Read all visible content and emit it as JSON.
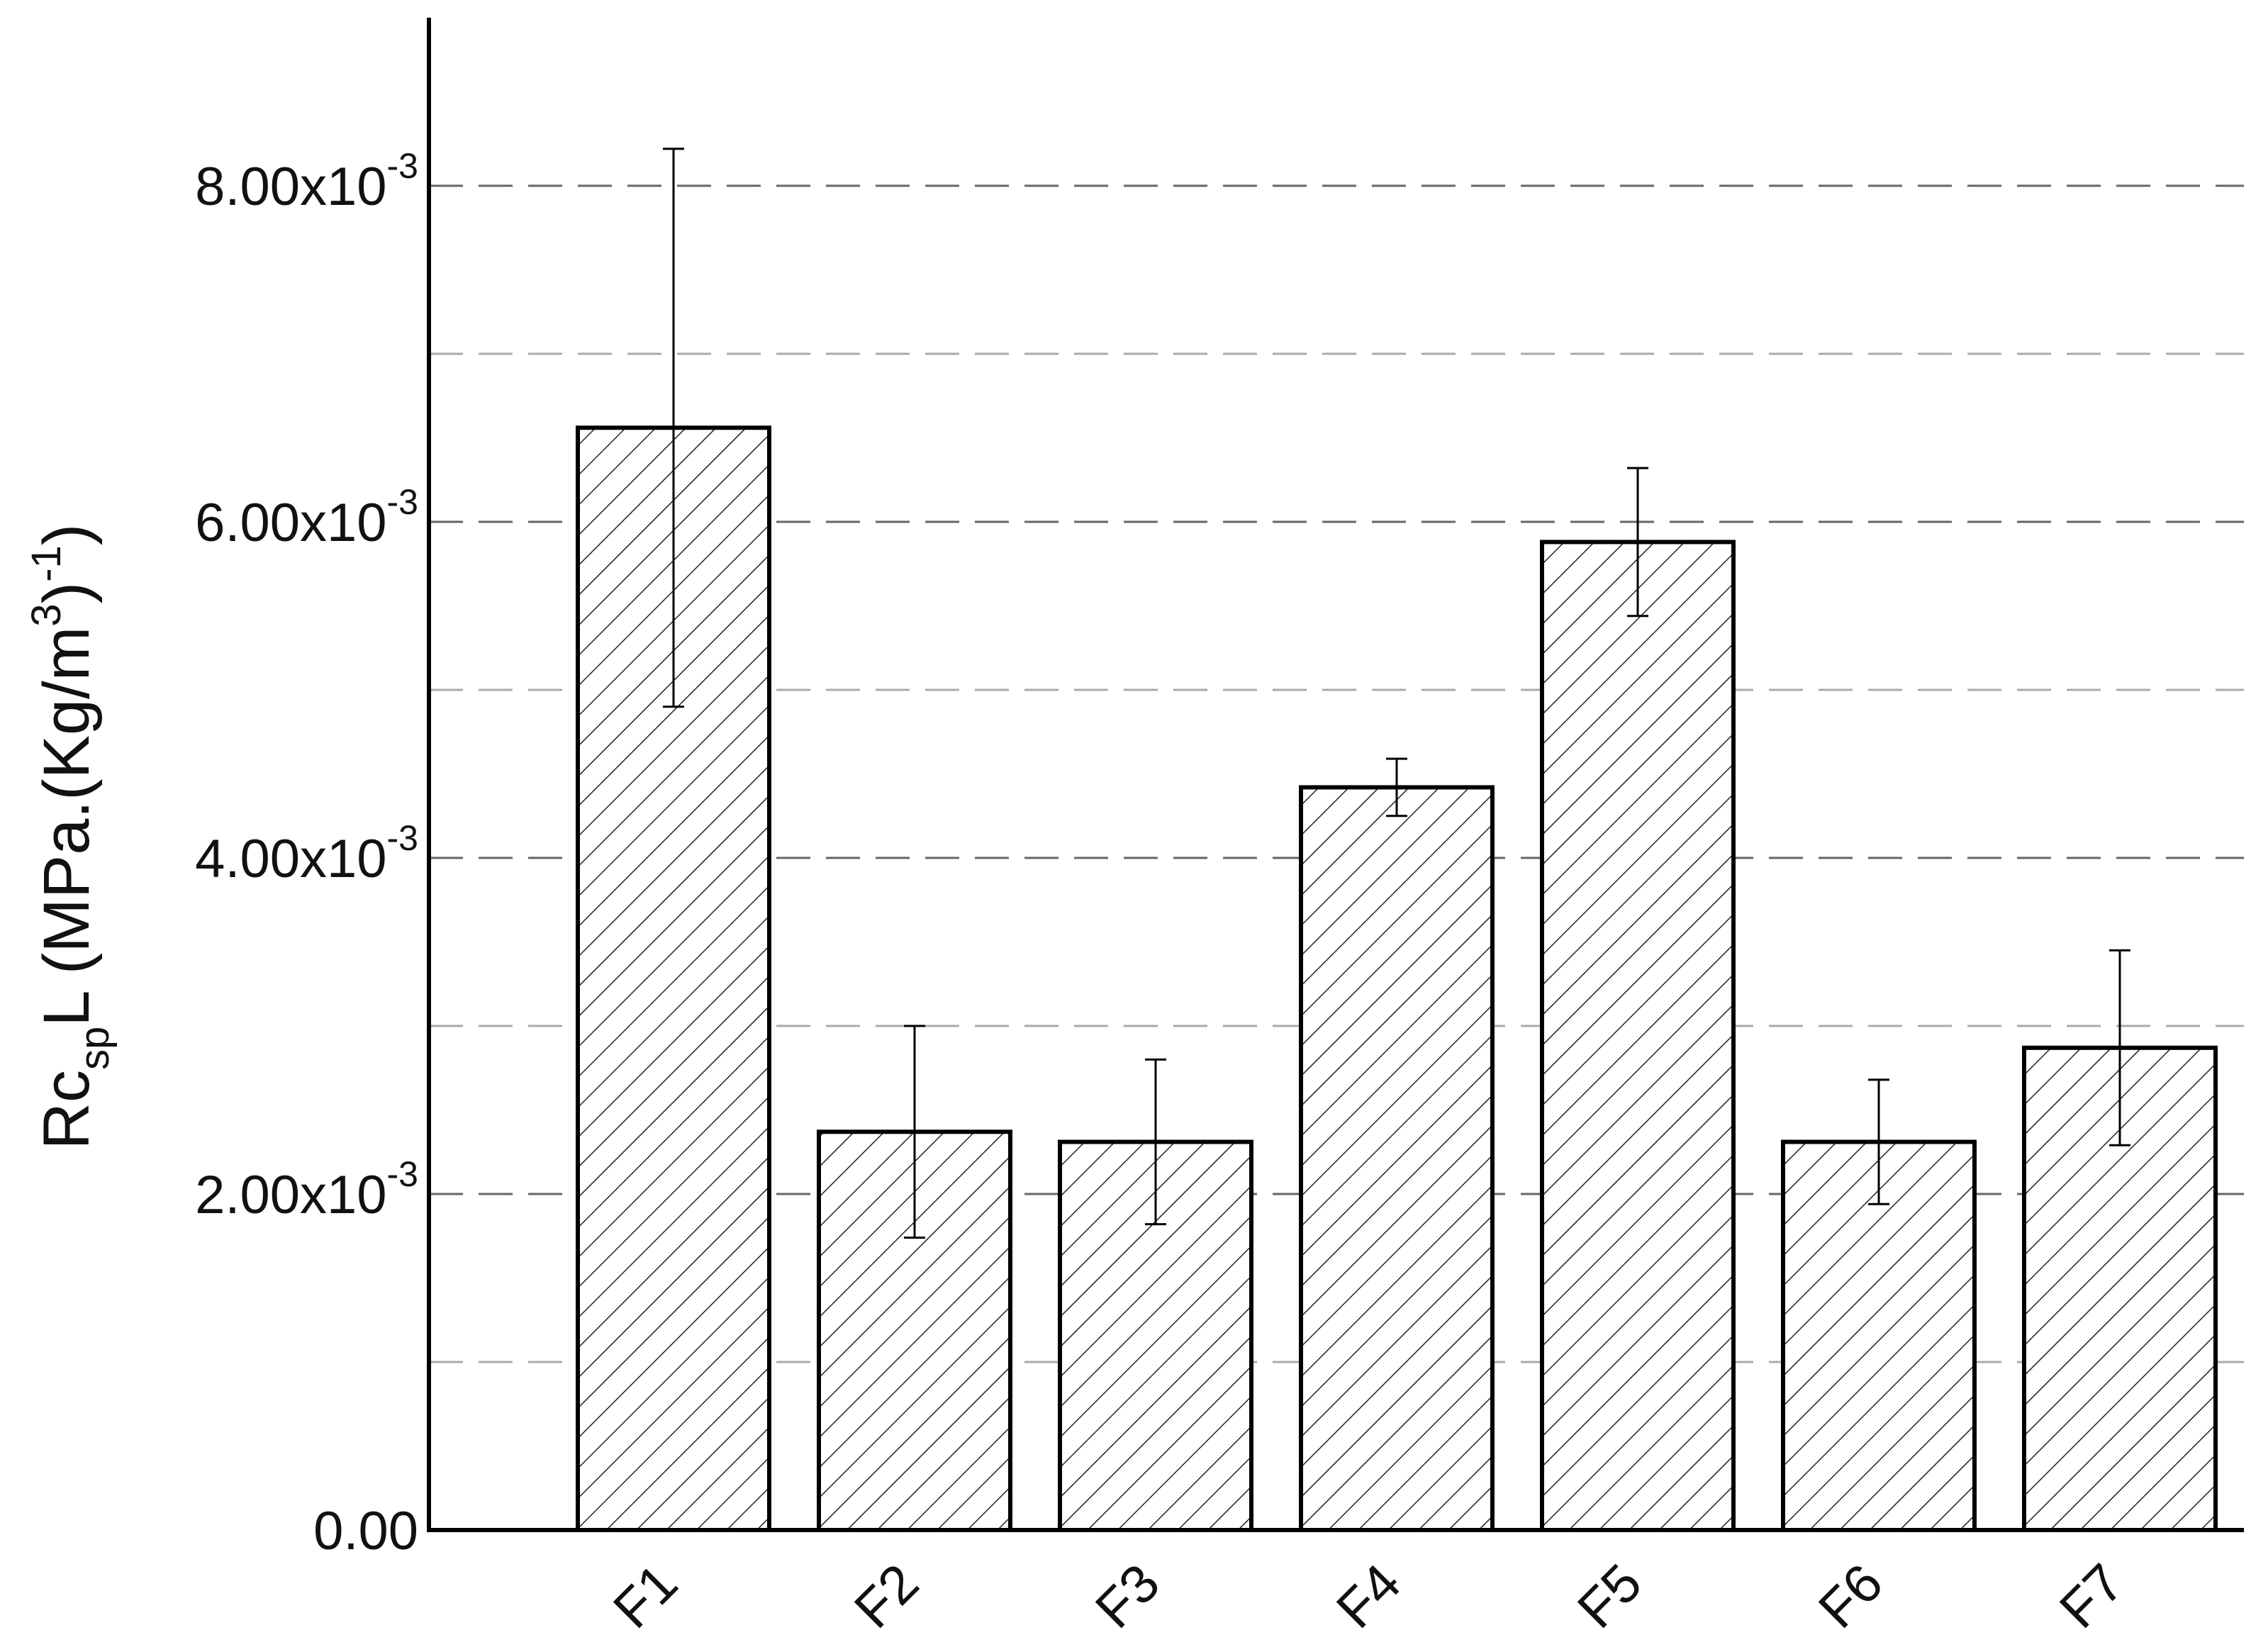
{
  "chart_data": {
    "type": "bar",
    "categories": [
      "F1",
      "F2",
      "F3",
      "F4",
      "F5",
      "F6",
      "F7"
    ],
    "values": [
      0.00656,
      0.00237,
      0.00231,
      0.00442,
      0.00588,
      0.00231,
      0.00287
    ],
    "error": [
      0.00166,
      0.00063,
      0.00049,
      0.00017,
      0.00044,
      0.00037,
      0.00058
    ],
    "ylim": [
      0,
      0.009
    ],
    "yticks": [
      {
        "value": 0,
        "label": "0.00"
      },
      {
        "value": 0.002,
        "label": "2.00x10",
        "exp": "-3"
      },
      {
        "value": 0.004,
        "label": "4.00x10",
        "exp": "-3"
      },
      {
        "value": 0.006,
        "label": "6.00x10",
        "exp": "-3"
      },
      {
        "value": 0.008,
        "label": "8.00x10",
        "exp": "-3"
      }
    ],
    "minor_grid": [
      0.001,
      0.003,
      0.005,
      0.007
    ],
    "ylabel": {
      "base": "Rc",
      "sub": "sp",
      "mid": "L (MPa.(Kg/m",
      "sup1": "3",
      "mid2": ")",
      "sup2": "-1",
      "end": ")"
    },
    "xlabel": "",
    "grid": true,
    "bar_pattern": "diagonal-hatch"
  }
}
